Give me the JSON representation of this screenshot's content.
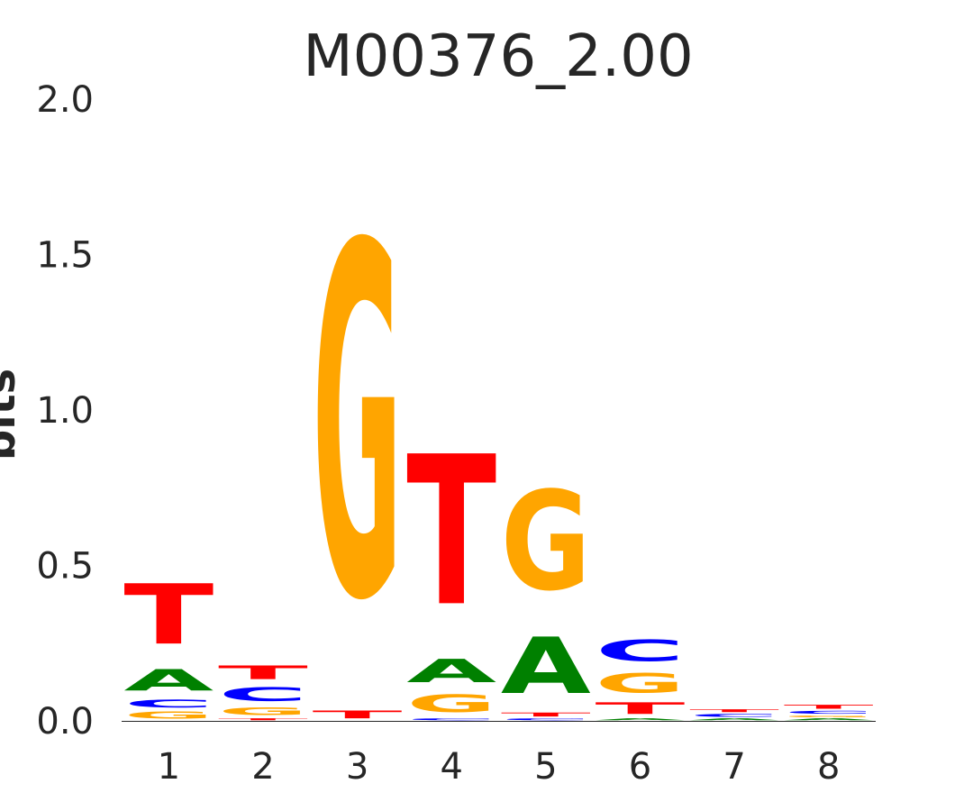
{
  "chart_data": {
    "type": "sequence-logo",
    "title": "M00376_2.00",
    "xlabel": "",
    "ylabel": "bits",
    "ylim": [
      0,
      2.0
    ],
    "yticks": [
      "0.0",
      "0.5",
      "1.0",
      "1.5",
      "2.0"
    ],
    "yticks_values": [
      0.0,
      0.5,
      1.0,
      1.5,
      2.0
    ],
    "positions": [
      "1",
      "2",
      "3",
      "4",
      "5",
      "6",
      "7",
      "8"
    ],
    "letter_colors": {
      "A": "#008000",
      "C": "#0000ff",
      "G": "#ffa500",
      "T": "#ff0000"
    },
    "stacks": [
      [
        {
          "letter": "G",
          "bits": 0.035
        },
        {
          "letter": "C",
          "bits": 0.04
        },
        {
          "letter": "A",
          "bits": 0.11
        },
        {
          "letter": "T",
          "bits": 0.31
        }
      ],
      [
        {
          "letter": "T",
          "bits": 0.01
        },
        {
          "letter": "G",
          "bits": 0.04
        },
        {
          "letter": "C",
          "bits": 0.07
        },
        {
          "letter": "T",
          "bits": 0.07
        }
      ],
      [
        {
          "letter": "T",
          "bits": 0.04
        },
        {
          "letter": "G",
          "bits": 1.81
        }
      ],
      [
        {
          "letter": "C",
          "bits": 0.01
        },
        {
          "letter": "G",
          "bits": 0.09
        },
        {
          "letter": "A",
          "bits": 0.12
        },
        {
          "letter": "T",
          "bits": 0.77
        }
      ],
      [
        {
          "letter": "C",
          "bits": 0.01
        },
        {
          "letter": "T",
          "bits": 0.02
        },
        {
          "letter": "A",
          "bits": 0.29
        },
        {
          "letter": "G",
          "bits": 0.51
        }
      ],
      [
        {
          "letter": "A",
          "bits": 0.01
        },
        {
          "letter": "T",
          "bits": 0.06
        },
        {
          "letter": "G",
          "bits": 0.1
        },
        {
          "letter": "C",
          "bits": 0.11
        }
      ],
      [
        {
          "letter": "A",
          "bits": 0.01
        },
        {
          "letter": "C",
          "bits": 0.015
        },
        {
          "letter": "T",
          "bits": 0.015
        }
      ],
      [
        {
          "letter": "A",
          "bits": 0.01
        },
        {
          "letter": "G",
          "bits": 0.01
        },
        {
          "letter": "C",
          "bits": 0.015
        },
        {
          "letter": "T",
          "bits": 0.02
        }
      ]
    ]
  }
}
